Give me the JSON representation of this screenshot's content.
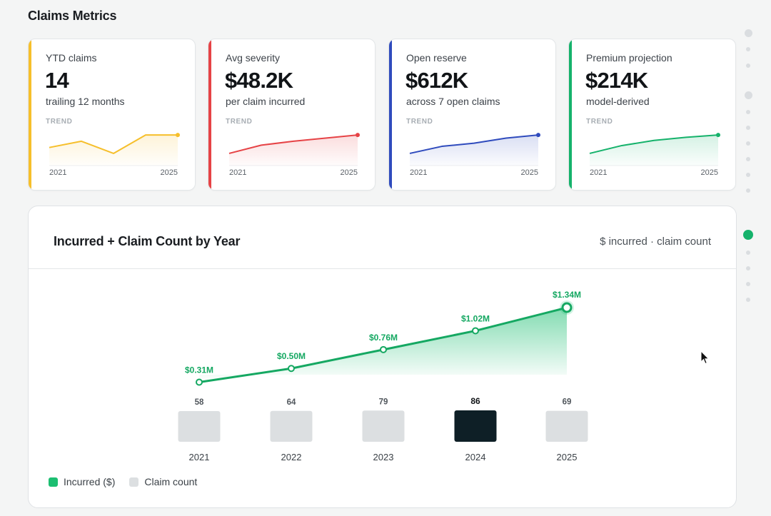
{
  "page": {
    "title": "Claims Metrics"
  },
  "kpis": [
    {
      "label": "YTD claims",
      "value": "14",
      "sub": "trailing 12 months",
      "trend_label": "TREND",
      "year_start": "2021",
      "year_end": "2025",
      "color": "#f6bf2b",
      "trend": [
        46,
        62,
        31,
        78,
        78
      ]
    },
    {
      "label": "Avg severity",
      "value": "$48.2K",
      "sub": "per claim incurred",
      "trend_label": "TREND",
      "year_start": "2021",
      "year_end": "2025",
      "color": "#e64346",
      "trend": [
        31,
        52,
        62,
        70,
        78
      ]
    },
    {
      "label": "Open reserve",
      "value": "$612K",
      "sub": "across 7 open claims",
      "trend_label": "TREND",
      "year_start": "2021",
      "year_end": "2025",
      "color": "#2f4bbd",
      "trend": [
        31,
        49,
        57,
        70,
        78
      ]
    },
    {
      "label": "Premium projection",
      "value": "$214K",
      "sub": "model-derived",
      "trend_label": "TREND",
      "year_start": "2021",
      "year_end": "2025",
      "color": "#15b26b",
      "trend": [
        31,
        51,
        64,
        72,
        78
      ]
    }
  ],
  "main": {
    "title": "Incurred + Claim Count by Year",
    "subtitle": "$ incurred · claim count",
    "legend": [
      {
        "label": "Incurred ($)",
        "color": "#1cbe71"
      },
      {
        "label": "Claim count",
        "color": "#dcdfe1"
      }
    ]
  },
  "chart_data": {
    "type": "line+bar",
    "categories": [
      "2021",
      "2022",
      "2023",
      "2024",
      "2025"
    ],
    "series": [
      {
        "name": "Incurred ($)",
        "kind": "line",
        "values": [
          0.31,
          0.5,
          0.76,
          1.02,
          1.34
        ],
        "labels": [
          "$0.31M",
          "$0.50M",
          "$0.76M",
          "$1.02M",
          "$1.34M"
        ],
        "color": "#15a862"
      },
      {
        "name": "Claim count",
        "kind": "bar",
        "values": [
          58,
          64,
          79,
          86,
          69
        ],
        "labels": [
          "58",
          "64",
          "79",
          "86",
          "69"
        ],
        "highlight_index": 3,
        "color": "#dcdfe1",
        "highlight_color": "#0e1f26"
      }
    ],
    "grid": false,
    "legend_position": "bottom-left"
  },
  "scroll_rail": {
    "active_index": 10
  }
}
